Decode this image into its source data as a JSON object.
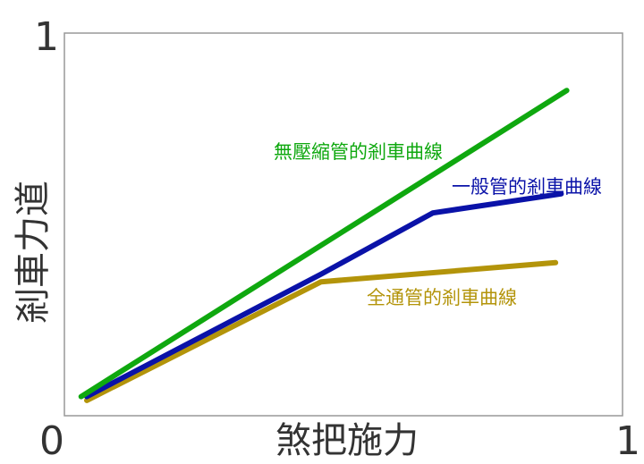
{
  "chart_data": {
    "type": "line",
    "title": "",
    "xlabel": "煞把施力",
    "ylabel": "剎車力道",
    "xlim": [
      0,
      1
    ],
    "ylim": [
      0,
      1
    ],
    "x_ticks": [
      "0",
      "1"
    ],
    "y_ticks": [
      "0",
      "1"
    ],
    "grid": false,
    "legend": "none",
    "series": [
      {
        "name": "無壓縮管的剎車曲線",
        "color": "#0fa80f",
        "points": [
          [
            0.03,
            0.05
          ],
          [
            0.9,
            0.85
          ]
        ]
      },
      {
        "name": "一般管的剎車曲線",
        "color": "#0a12a8",
        "points": [
          [
            0.04,
            0.05
          ],
          [
            0.46,
            0.37
          ],
          [
            0.66,
            0.53
          ],
          [
            0.89,
            0.58
          ]
        ]
      },
      {
        "name": "全通管的剎車曲線",
        "color": "#b3940a",
        "points": [
          [
            0.04,
            0.04
          ],
          [
            0.46,
            0.35
          ],
          [
            0.88,
            0.4
          ]
        ]
      }
    ]
  }
}
